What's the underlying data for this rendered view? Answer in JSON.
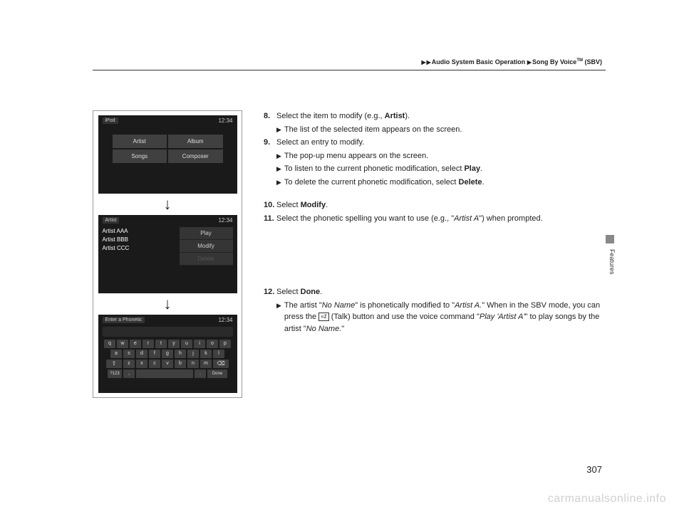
{
  "breadcrumb": {
    "section1": "Audio System Basic Operation",
    "section2": "Song By Voice",
    "tm": "TM",
    "suffix": " (SBV)"
  },
  "sideLabel": "Features",
  "screens": {
    "time": "12:34",
    "s1": {
      "back": "iPod",
      "cells": [
        "Artist",
        "Album",
        "Songs",
        "Composer"
      ]
    },
    "s2": {
      "back": "Artist",
      "list": [
        "Artist AAA",
        "Artist BBB",
        "Artist CCC"
      ],
      "menu": [
        "Play",
        "Modify",
        "Delete"
      ]
    },
    "s3": {
      "back": "Enter a Phonetic",
      "rows": [
        [
          "q",
          "w",
          "e",
          "r",
          "t",
          "y",
          "u",
          "i",
          "o",
          "p"
        ],
        [
          "a",
          "s",
          "d",
          "f",
          "g",
          "h",
          "j",
          "k",
          "l"
        ],
        [
          "z",
          "x",
          "c",
          "v",
          "b",
          "n",
          "m"
        ]
      ],
      "bottomLeft": "?123",
      "done": "Done"
    }
  },
  "steps": {
    "s8": {
      "num": "8.",
      "text_a": "Select the item to modify (e.g., ",
      "text_b": "Artist",
      "text_c": ")."
    },
    "s8sub": "The list of the selected item appears on the screen.",
    "s9": {
      "num": "9.",
      "text": "Select an entry to modify."
    },
    "s9sub1": "The pop-up menu appears on the screen.",
    "s9sub2_a": "To listen to the current phonetic modification, select ",
    "s9sub2_b": "Play",
    "s9sub3_a": "To delete the current phonetic modification, select ",
    "s9sub3_b": "Delete",
    "s10": {
      "num": "10.",
      "text_a": "Select ",
      "text_b": "Modify",
      "text_c": "."
    },
    "s11": {
      "num": "11.",
      "text_a": "Select the phonetic spelling you want to use (e.g., \"",
      "text_b": "Artist A",
      "text_c": "\") when prompted."
    },
    "s12": {
      "num": "12.",
      "text_a": "Select ",
      "text_b": "Done",
      "text_c": "."
    },
    "s12sub_a": "The artist \"",
    "s12sub_b": "No Name",
    "s12sub_c": "\" is phonetically modified to \"",
    "s12sub_d": "Artist A.",
    "s12sub_e": "\" When in the SBV mode, you can press the ",
    "s12sub_f": " (Talk) button and use the voice command \"",
    "s12sub_g": "Play 'Artist A'",
    "s12sub_h": "\" to play songs by the artist \"",
    "s12sub_i": "No Name.",
    "s12sub_j": "\""
  },
  "talkIcon": "«ź",
  "pageNum": "307",
  "watermark": "carmanualsonline.info"
}
